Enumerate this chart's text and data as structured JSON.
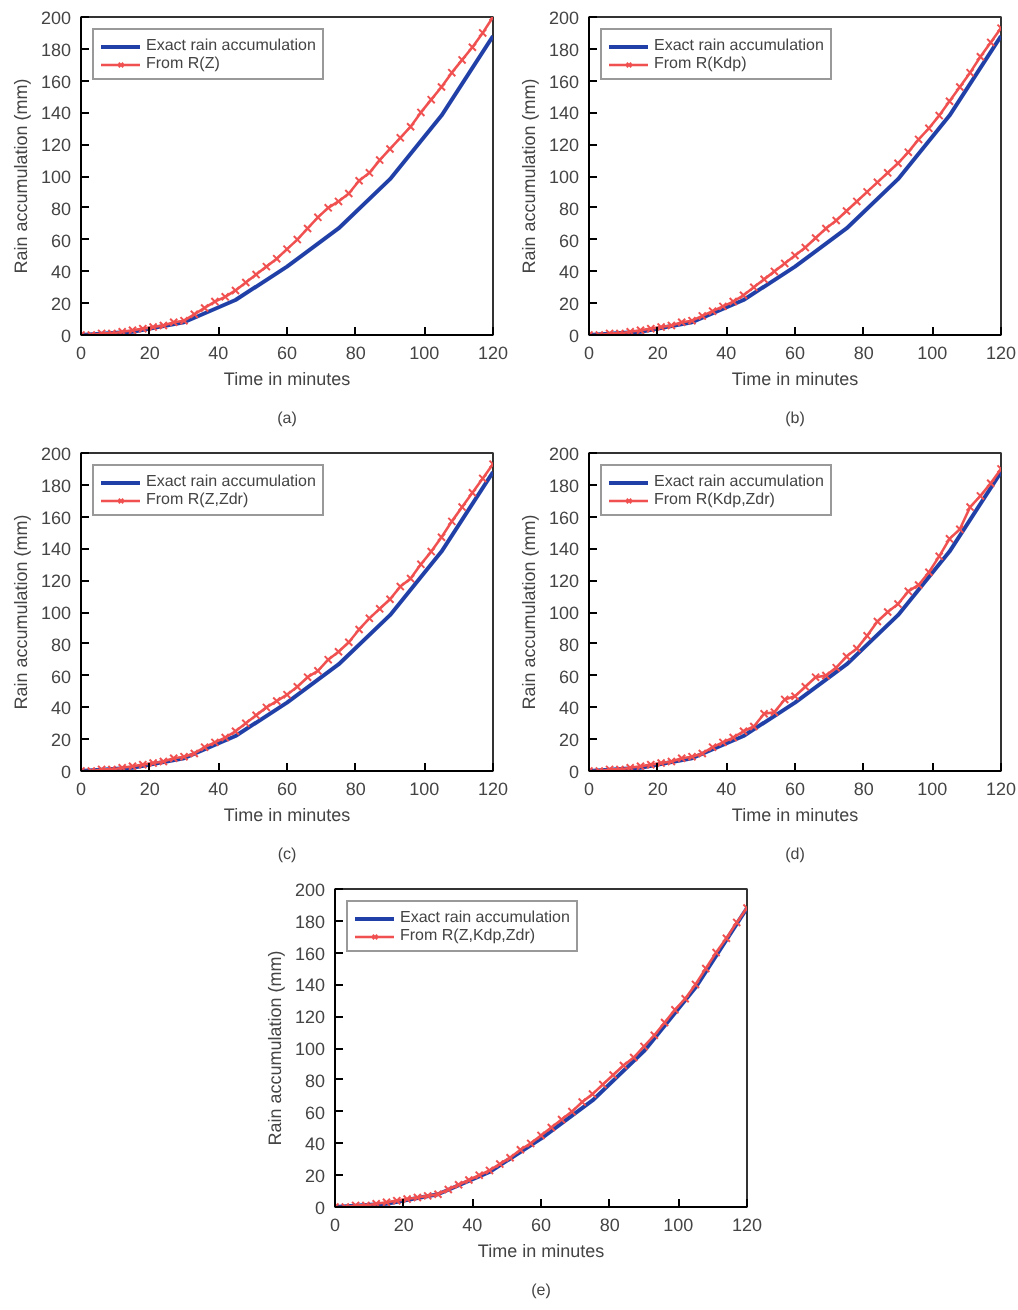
{
  "chart_data": [
    {
      "type": "line",
      "xlabel": "Time in minutes",
      "ylabel": "Rain accumulation (mm)",
      "annotations": [
        "(a)"
      ],
      "xlim": [
        0,
        120
      ],
      "ylim": [
        0,
        200
      ],
      "xticks": [
        0,
        20,
        40,
        60,
        80,
        100,
        120
      ],
      "yticks": [
        0,
        20,
        40,
        60,
        80,
        100,
        120,
        140,
        160,
        180,
        200
      ],
      "grid": false,
      "legend": "top left",
      "series": [
        {
          "name": "Exact rain accumulation",
          "color": "#2040a8",
          "marker": "none",
          "x": [
            0,
            15,
            30,
            45,
            60,
            75,
            90,
            105,
            120
          ],
          "values": [
            0,
            2,
            8,
            22,
            43,
            67,
            98,
            138,
            188
          ]
        },
        {
          "name": "From R(Z)",
          "color": "#f05050",
          "marker": "cross",
          "x": [
            0,
            3,
            6,
            9,
            12,
            15,
            18,
            21,
            24,
            27,
            30,
            33,
            36,
            39,
            42,
            45,
            48,
            51,
            54,
            57,
            60,
            63,
            66,
            69,
            72,
            75,
            78,
            81,
            84,
            87,
            90,
            93,
            96,
            99,
            102,
            105,
            108,
            111,
            114,
            117,
            120
          ],
          "values": [
            0,
            0,
            1,
            1,
            2,
            3,
            4,
            5,
            6,
            8,
            9,
            13,
            17,
            21,
            24,
            28,
            33,
            38,
            43,
            48,
            54,
            60,
            67,
            74,
            80,
            84,
            89,
            97,
            102,
            110,
            117,
            124,
            131,
            140,
            148,
            156,
            165,
            173,
            181,
            190,
            200
          ]
        }
      ]
    },
    {
      "type": "line",
      "xlabel": "Time in minutes",
      "ylabel": "Rain accumulation (mm)",
      "annotations": [
        "(b)"
      ],
      "xlim": [
        0,
        120
      ],
      "ylim": [
        0,
        200
      ],
      "xticks": [
        0,
        20,
        40,
        60,
        80,
        100,
        120
      ],
      "yticks": [
        0,
        20,
        40,
        60,
        80,
        100,
        120,
        140,
        160,
        180,
        200
      ],
      "grid": false,
      "legend": "top left",
      "series": [
        {
          "name": "Exact rain accumulation",
          "color": "#2040a8",
          "marker": "none",
          "x": [
            0,
            15,
            30,
            45,
            60,
            75,
            90,
            105,
            120
          ],
          "values": [
            0,
            2,
            8,
            22,
            43,
            67,
            98,
            138,
            188
          ]
        },
        {
          "name": "From R(Kdp)",
          "color": "#f05050",
          "marker": "cross",
          "x": [
            0,
            3,
            6,
            9,
            12,
            15,
            18,
            21,
            24,
            27,
            30,
            33,
            36,
            39,
            42,
            45,
            48,
            51,
            54,
            57,
            60,
            63,
            66,
            69,
            72,
            75,
            78,
            81,
            84,
            87,
            90,
            93,
            96,
            99,
            102,
            105,
            108,
            111,
            114,
            117,
            120
          ],
          "values": [
            0,
            0,
            1,
            1,
            2,
            3,
            4,
            5,
            6,
            8,
            9,
            12,
            15,
            18,
            21,
            25,
            30,
            35,
            40,
            45,
            50,
            55,
            61,
            67,
            72,
            78,
            84,
            90,
            96,
            102,
            108,
            115,
            123,
            130,
            138,
            147,
            156,
            165,
            175,
            184,
            193
          ]
        }
      ]
    },
    {
      "type": "line",
      "xlabel": "Time in minutes",
      "ylabel": "Rain accumulation (mm)",
      "annotations": [
        "(c)"
      ],
      "xlim": [
        0,
        120
      ],
      "ylim": [
        0,
        200
      ],
      "xticks": [
        0,
        20,
        40,
        60,
        80,
        100,
        120
      ],
      "yticks": [
        0,
        20,
        40,
        60,
        80,
        100,
        120,
        140,
        160,
        180,
        200
      ],
      "grid": false,
      "legend": "top left",
      "series": [
        {
          "name": "Exact rain accumulation",
          "color": "#2040a8",
          "marker": "none",
          "x": [
            0,
            15,
            30,
            45,
            60,
            75,
            90,
            105,
            120
          ],
          "values": [
            0,
            2,
            8,
            22,
            43,
            67,
            98,
            138,
            188
          ]
        },
        {
          "name": "From R(Z,Zdr)",
          "color": "#f05050",
          "marker": "cross",
          "x": [
            0,
            3,
            6,
            9,
            12,
            15,
            18,
            21,
            24,
            27,
            30,
            33,
            36,
            39,
            42,
            45,
            48,
            51,
            54,
            57,
            60,
            63,
            66,
            69,
            72,
            75,
            78,
            81,
            84,
            87,
            90,
            93,
            96,
            99,
            102,
            105,
            108,
            111,
            114,
            117,
            120
          ],
          "values": [
            0,
            0,
            1,
            1,
            2,
            3,
            4,
            5,
            6,
            8,
            9,
            11,
            15,
            18,
            21,
            25,
            30,
            35,
            40,
            44,
            48,
            53,
            59,
            63,
            70,
            75,
            81,
            89,
            96,
            102,
            108,
            116,
            121,
            130,
            138,
            147,
            157,
            166,
            175,
            184,
            193
          ]
        }
      ]
    },
    {
      "type": "line",
      "xlabel": "Time in minutes",
      "ylabel": "Rain accumulation (mm)",
      "annotations": [
        "(d)"
      ],
      "xlim": [
        0,
        120
      ],
      "ylim": [
        0,
        200
      ],
      "xticks": [
        0,
        20,
        40,
        60,
        80,
        100,
        120
      ],
      "yticks": [
        0,
        20,
        40,
        60,
        80,
        100,
        120,
        140,
        160,
        180,
        200
      ],
      "grid": false,
      "legend": "top left",
      "series": [
        {
          "name": "Exact rain accumulation",
          "color": "#2040a8",
          "marker": "none",
          "x": [
            0,
            15,
            30,
            45,
            60,
            75,
            90,
            105,
            120
          ],
          "values": [
            0,
            2,
            8,
            22,
            43,
            67,
            98,
            138,
            188
          ]
        },
        {
          "name": "From R(Kdp,Zdr)",
          "color": "#f05050",
          "marker": "cross",
          "x": [
            0,
            3,
            6,
            9,
            12,
            15,
            18,
            21,
            24,
            27,
            30,
            33,
            36,
            39,
            42,
            45,
            48,
            51,
            54,
            57,
            60,
            63,
            66,
            69,
            72,
            75,
            78,
            81,
            84,
            87,
            90,
            93,
            96,
            99,
            102,
            105,
            108,
            111,
            114,
            117,
            120
          ],
          "values": [
            0,
            0,
            1,
            1,
            2,
            3,
            4,
            5,
            6,
            8,
            9,
            11,
            15,
            18,
            21,
            25,
            28,
            36,
            37,
            45,
            47,
            53,
            59,
            60,
            65,
            72,
            77,
            85,
            94,
            100,
            105,
            113,
            117,
            125,
            135,
            146,
            152,
            166,
            173,
            181,
            190
          ]
        }
      ]
    },
    {
      "type": "line",
      "xlabel": "Time in minutes",
      "ylabel": "Rain accumulation (mm)",
      "annotations": [
        "(e)"
      ],
      "xlim": [
        0,
        120
      ],
      "ylim": [
        0,
        200
      ],
      "xticks": [
        0,
        20,
        40,
        60,
        80,
        100,
        120
      ],
      "yticks": [
        0,
        20,
        40,
        60,
        80,
        100,
        120,
        140,
        160,
        180,
        200
      ],
      "grid": false,
      "legend": "top left",
      "series": [
        {
          "name": "Exact rain accumulation",
          "color": "#2040a8",
          "marker": "none",
          "x": [
            0,
            15,
            30,
            45,
            60,
            75,
            90,
            105,
            120
          ],
          "values": [
            0,
            2,
            8,
            22,
            43,
            67,
            98,
            138,
            188
          ]
        },
        {
          "name": "From R(Z,Kdp,Zdr)",
          "color": "#f05050",
          "marker": "cross",
          "x": [
            0,
            3,
            6,
            9,
            12,
            15,
            18,
            21,
            24,
            27,
            30,
            33,
            36,
            39,
            42,
            45,
            48,
            51,
            54,
            57,
            60,
            63,
            66,
            69,
            72,
            75,
            78,
            81,
            84,
            87,
            90,
            93,
            96,
            99,
            102,
            105,
            108,
            111,
            114,
            117,
            120
          ],
          "values": [
            0,
            0,
            1,
            1,
            2,
            3,
            4,
            5,
            6,
            7,
            8,
            11,
            14,
            17,
            20,
            23,
            27,
            31,
            36,
            40,
            45,
            50,
            55,
            60,
            66,
            71,
            77,
            83,
            89,
            94,
            101,
            108,
            116,
            124,
            131,
            140,
            150,
            160,
            169,
            179,
            188
          ]
        }
      ]
    }
  ]
}
